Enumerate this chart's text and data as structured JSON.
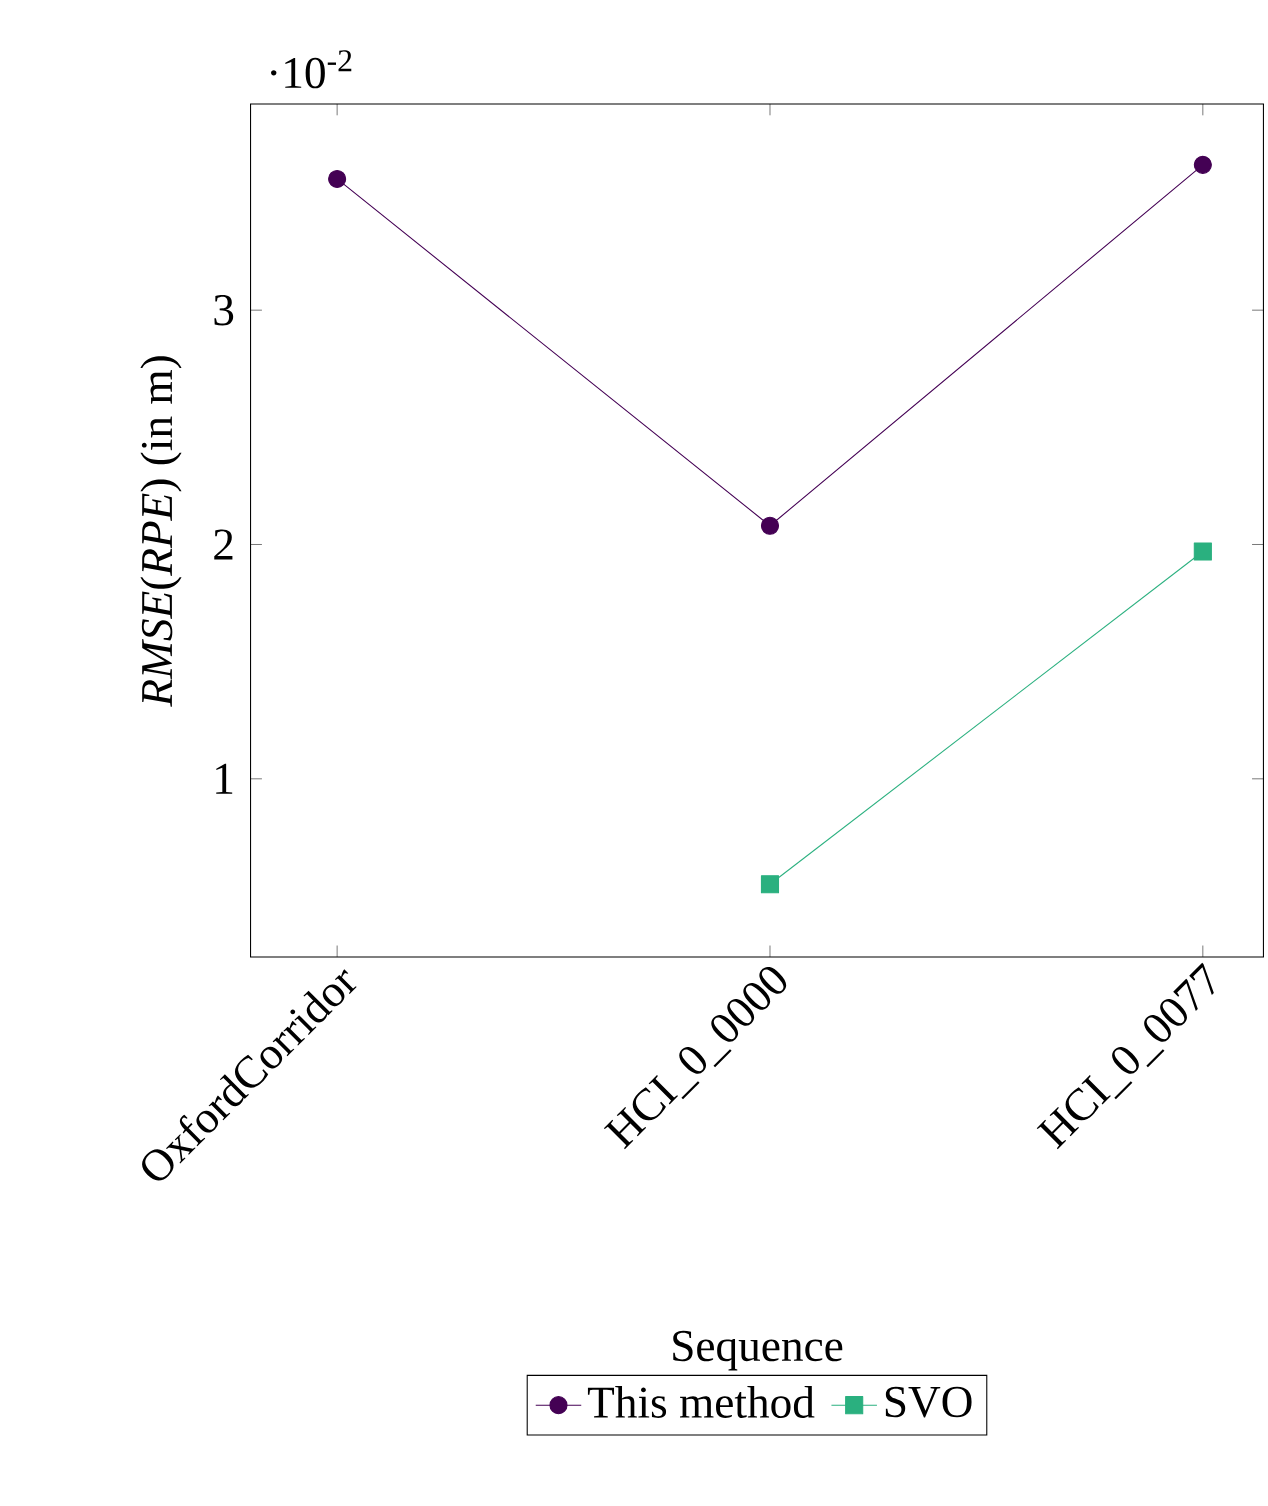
{
  "chart_data": {
    "type": "line",
    "xlabel": "Sequence",
    "ylabel": "*RMSE*(*RPE*) (in m)",
    "categories": [
      "OxfordCorridor",
      "HCI_0_0000",
      "HCI_0_0077"
    ],
    "series": [
      {
        "name": "This method",
        "color": "#440154",
        "marker": "circle",
        "values": [
          3.56,
          2.08,
          3.62
        ]
      },
      {
        "name": "SVO",
        "color": "#2ab07f",
        "marker": "square",
        "values": [
          null,
          0.55,
          1.97
        ]
      }
    ],
    "ylim": [
      0.24,
      3.88
    ],
    "yticks": [
      1,
      2,
      3
    ],
    "annotations": [
      "·10$^{-2}$"
    ],
    "legend": "bottom",
    "grid": false
  }
}
